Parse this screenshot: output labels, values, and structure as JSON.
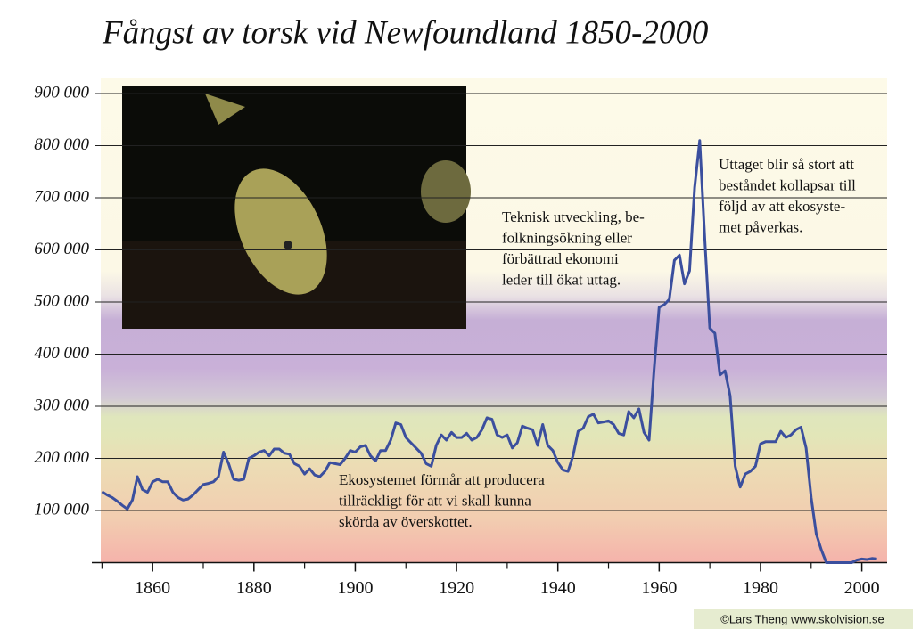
{
  "chart_data": {
    "type": "line",
    "title": "Fångst av torsk vid Newfoundland 1850-2000",
    "annotations": [
      [
        "Teknisk utveckling, be-",
        "folkningsökning eller",
        "förbättrad ekonomi",
        "leder till ökat uttag."
      ],
      [
        "Uttaget blir så stort att",
        "beståndet kollapsar till",
        "följd av att ekosyste-",
        "met påverkas."
      ],
      [
        "Ekosystemet förmår att producera",
        "tillräckligt för att vi skall kunna",
        "skörda av överskottet."
      ]
    ],
    "credit": "©Lars Theng    www.skolvision.se",
    "color": "#3b4f9e",
    "x": [
      1850,
      1851,
      1852,
      1853,
      1854,
      1855,
      1856,
      1857,
      1858,
      1859,
      1860,
      1861,
      1862,
      1863,
      1864,
      1865,
      1866,
      1867,
      1868,
      1869,
      1870,
      1871,
      1872,
      1873,
      1874,
      1875,
      1876,
      1877,
      1878,
      1879,
      1880,
      1881,
      1882,
      1883,
      1884,
      1885,
      1886,
      1887,
      1888,
      1889,
      1890,
      1891,
      1892,
      1893,
      1894,
      1895,
      1896,
      1897,
      1898,
      1899,
      1900,
      1901,
      1902,
      1903,
      1904,
      1905,
      1906,
      1907,
      1908,
      1909,
      1910,
      1911,
      1912,
      1913,
      1914,
      1915,
      1916,
      1917,
      1918,
      1919,
      1920,
      1921,
      1922,
      1923,
      1924,
      1925,
      1926,
      1927,
      1928,
      1929,
      1930,
      1931,
      1932,
      1933,
      1934,
      1935,
      1936,
      1937,
      1938,
      1939,
      1940,
      1941,
      1942,
      1943,
      1944,
      1945,
      1946,
      1947,
      1948,
      1949,
      1950,
      1951,
      1952,
      1953,
      1954,
      1955,
      1956,
      1957,
      1958,
      1959,
      1960,
      1961,
      1962,
      1963,
      1964,
      1965,
      1966,
      1967,
      1968,
      1969,
      1970,
      1971,
      1972,
      1973,
      1974,
      1975,
      1976,
      1977,
      1978,
      1979,
      1980,
      1981,
      1982,
      1983,
      1984,
      1985,
      1986,
      1987,
      1988,
      1989,
      1990,
      1991,
      1992,
      1993,
      1994,
      1995,
      1996,
      1997,
      1998,
      1999,
      2000,
      2001,
      2002,
      2003
    ],
    "values": [
      136000,
      130000,
      125000,
      118000,
      110000,
      103000,
      120000,
      165000,
      140000,
      135000,
      155000,
      160000,
      155000,
      155000,
      135000,
      125000,
      120000,
      122000,
      130000,
      140000,
      150000,
      152000,
      155000,
      165000,
      212000,
      190000,
      160000,
      158000,
      160000,
      200000,
      205000,
      212000,
      215000,
      205000,
      218000,
      218000,
      210000,
      208000,
      190000,
      185000,
      170000,
      180000,
      168000,
      165000,
      175000,
      192000,
      190000,
      188000,
      200000,
      215000,
      212000,
      222000,
      225000,
      205000,
      195000,
      215000,
      215000,
      235000,
      268000,
      265000,
      240000,
      230000,
      220000,
      210000,
      190000,
      185000,
      225000,
      245000,
      235000,
      250000,
      240000,
      240000,
      248000,
      235000,
      240000,
      255000,
      278000,
      275000,
      245000,
      240000,
      245000,
      220000,
      230000,
      262000,
      258000,
      255000,
      225000,
      265000,
      225000,
      215000,
      192000,
      178000,
      175000,
      205000,
      252000,
      258000,
      280000,
      285000,
      268000,
      270000,
      272000,
      265000,
      248000,
      245000,
      290000,
      278000,
      295000,
      250000,
      235000,
      370000,
      490000,
      495000,
      505000,
      580000,
      590000,
      535000,
      560000,
      720000,
      810000,
      620000,
      450000,
      440000,
      360000,
      368000,
      320000,
      185000,
      145000,
      170000,
      175000,
      185000,
      228000,
      232000,
      232000,
      232000,
      252000,
      240000,
      245000,
      255000,
      260000,
      220000,
      125000,
      55000,
      25000,
      0,
      0,
      0,
      0,
      0,
      0,
      5000,
      7000,
      6000,
      8000,
      7000
    ],
    "xlim": [
      1848,
      2005
    ],
    "xticks": [
      1860,
      1880,
      1900,
      1920,
      1940,
      1960,
      1980,
      2000
    ],
    "xminor_ticks": [
      1850,
      1870,
      1890,
      1910,
      1930,
      1950,
      1970,
      1990
    ],
    "ylim": [
      0,
      930000
    ],
    "yticks": [
      {
        "value": 100000,
        "label": "100 000"
      },
      {
        "value": 200000,
        "label": "200 000"
      },
      {
        "value": 300000,
        "label": "300 000"
      },
      {
        "value": 400000,
        "label": "400 000"
      },
      {
        "value": 500000,
        "label": "500 000"
      },
      {
        "value": 600000,
        "label": "600 000"
      },
      {
        "value": 700000,
        "label": "700 000"
      },
      {
        "value": 800000,
        "label": "800 000"
      },
      {
        "value": 900000,
        "label": "900 000"
      }
    ],
    "grid": true
  }
}
